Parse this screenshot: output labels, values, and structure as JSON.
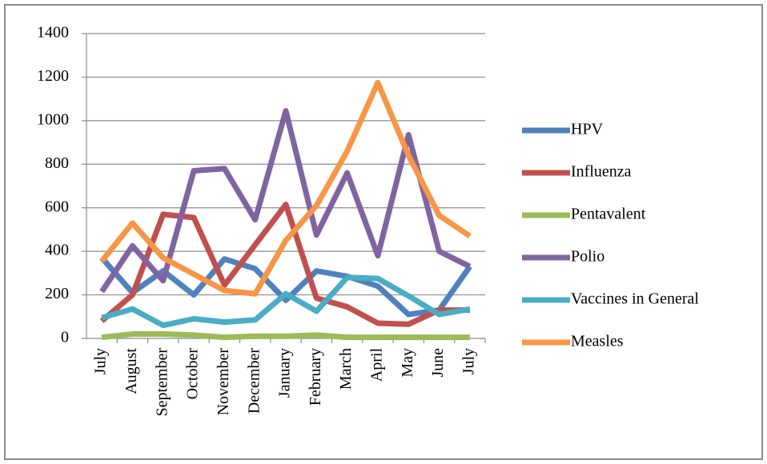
{
  "chart_data": {
    "type": "line",
    "categories": [
      "July",
      "August",
      "September",
      "October",
      "November",
      "December",
      "January",
      "February",
      "March",
      "April",
      "May",
      "June",
      "July"
    ],
    "series": [
      {
        "name": "HPV",
        "color": "#4f81bd",
        "values": [
          370,
          210,
          310,
          200,
          365,
          320,
          175,
          310,
          285,
          240,
          110,
          130,
          330
        ]
      },
      {
        "name": "Influenza",
        "color": "#c0504d",
        "values": [
          80,
          200,
          570,
          555,
          245,
          430,
          615,
          185,
          145,
          70,
          65,
          130,
          130
        ]
      },
      {
        "name": "Pentavalent",
        "color": "#9bbb59",
        "values": [
          5,
          20,
          20,
          15,
          5,
          10,
          10,
          15,
          5,
          5,
          5,
          5,
          5
        ]
      },
      {
        "name": "Polio",
        "color": "#8064a2",
        "values": [
          215,
          425,
          265,
          770,
          780,
          545,
          1045,
          475,
          760,
          380,
          935,
          400,
          330
        ]
      },
      {
        "name": "Vaccines in General",
        "color": "#4bacc6",
        "values": [
          95,
          135,
          60,
          90,
          75,
          85,
          205,
          125,
          280,
          275,
          195,
          110,
          135
        ]
      },
      {
        "name": "Measles",
        "color": "#f79646",
        "values": [
          355,
          530,
          370,
          295,
          220,
          205,
          450,
          610,
          860,
          1175,
          840,
          565,
          470
        ]
      }
    ],
    "ylim": [
      0,
      1400
    ],
    "yticks": [
      0,
      200,
      400,
      600,
      800,
      1000,
      1200,
      1400
    ],
    "grid": true,
    "legend": "right"
  }
}
